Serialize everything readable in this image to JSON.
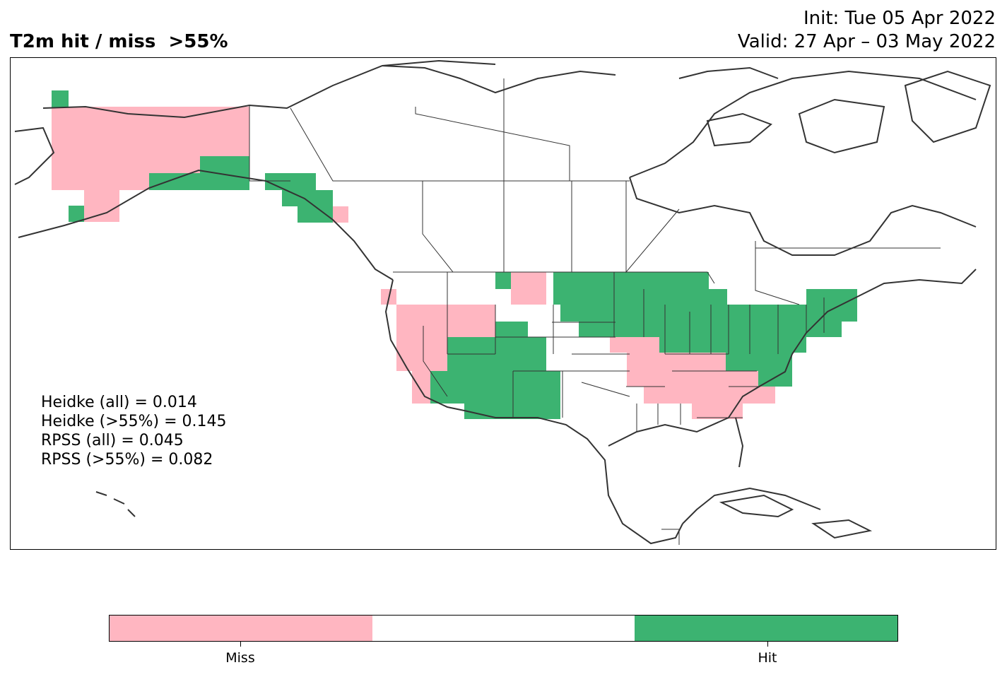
{
  "title": "T2m hit / miss  >55%",
  "init_label": "Init: Tue 05 Apr 2022",
  "valid_label": "Valid: 27 Apr – 03 May 2022",
  "scores": [
    "Heidke (all) = 0.014",
    "Heidke (>55%) = 0.145",
    "RPSS (all) = 0.045",
    "RPSS (>55%) = 0.082"
  ],
  "colorbar": {
    "colors": [
      "#ffb6c1",
      "#ffffff",
      "#3cb371"
    ],
    "labels": [
      "Miss",
      "Hit"
    ]
  },
  "chart_data": {
    "type": "heatmap",
    "categories": [
      "Miss",
      "Hit"
    ],
    "colors": {
      "miss": "#ffb6c1",
      "hit": "#3cb371"
    }
  }
}
